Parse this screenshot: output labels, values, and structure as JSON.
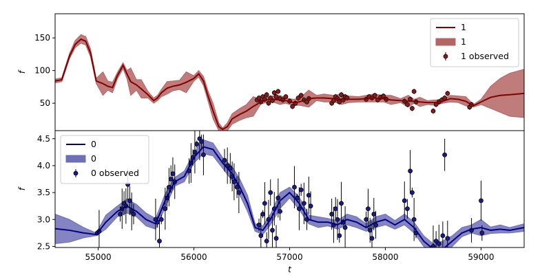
{
  "chart_data": [
    {
      "type": "line",
      "panel": "top",
      "ylabel": "f",
      "xlabel": "",
      "xlim": [
        54550,
        59450
      ],
      "ylim": [
        8,
        187
      ],
      "yticks": [
        50,
        100,
        150
      ],
      "xticks": [],
      "legend": {
        "placement": "top-right",
        "entries": [
          "1",
          "1",
          "1 observed"
        ]
      },
      "colors": {
        "line": "#7f0000",
        "band": "#b56464",
        "points": "#8b1a1a"
      },
      "series": [
        {
          "name": "1",
          "kind": "mean",
          "x": [
            54550,
            54620,
            54700,
            54760,
            54820,
            54870,
            54920,
            54980,
            55050,
            55100,
            55150,
            55200,
            55260,
            55300,
            55340,
            55400,
            55450,
            55520,
            55580,
            55620,
            55660,
            55720,
            55780,
            55850,
            55920,
            56000,
            56050,
            56100,
            56150,
            56200,
            56260,
            56300,
            56350,
            56400,
            56480,
            56550,
            56620,
            56700,
            56760,
            56820,
            56900,
            56960,
            57040,
            57100,
            57200,
            57280,
            57360,
            57460,
            57540,
            57620,
            57720,
            57800,
            57880,
            57980,
            58060,
            58160,
            58240,
            58300,
            58360,
            58440,
            58520,
            58600,
            58680,
            58760,
            58840,
            58920,
            59000,
            59100,
            59200,
            59300,
            59450
          ],
          "y": [
            84,
            86,
            122,
            140,
            148,
            145,
            127,
            84,
            80,
            76,
            74,
            92,
            108,
            95,
            83,
            78,
            72,
            63,
            54,
            58,
            66,
            73,
            76,
            78,
            82,
            88,
            95,
            84,
            60,
            38,
            14,
            10,
            14,
            26,
            33,
            38,
            45,
            52,
            55,
            56,
            55,
            54,
            51,
            52,
            57,
            58,
            58,
            57,
            56,
            56,
            56,
            57,
            58,
            57,
            55,
            54,
            53,
            53,
            52,
            51,
            51,
            53,
            57,
            56,
            53,
            46,
            52,
            59,
            62,
            63,
            65
          ]
        },
        {
          "name": "1",
          "kind": "band",
          "x": [
            54550,
            54620,
            54700,
            54760,
            54820,
            54870,
            54920,
            54980,
            55050,
            55100,
            55150,
            55200,
            55260,
            55300,
            55340,
            55400,
            55450,
            55520,
            55580,
            55620,
            55660,
            55720,
            55780,
            55850,
            55920,
            56000,
            56050,
            56100,
            56150,
            56200,
            56260,
            56300,
            56350,
            56400,
            56480,
            56550,
            56620,
            56700,
            56760,
            56820,
            56900,
            56960,
            57040,
            57100,
            57200,
            57280,
            57360,
            57460,
            57540,
            57620,
            57720,
            57800,
            57880,
            57980,
            58060,
            58160,
            58240,
            58300,
            58360,
            58440,
            58520,
            58600,
            58680,
            58760,
            58840,
            58920,
            59000,
            59100,
            59200,
            59300,
            59450
          ],
          "lower": [
            81,
            83,
            118,
            135,
            142,
            139,
            121,
            80,
            62,
            70,
            66,
            87,
            103,
            88,
            62,
            70,
            58,
            58,
            50,
            54,
            60,
            64,
            69,
            71,
            66,
            84,
            90,
            77,
            52,
            26,
            8,
            8,
            8,
            18,
            24,
            28,
            30,
            49,
            51,
            52,
            48,
            50,
            46,
            47,
            44,
            54,
            52,
            52,
            48,
            51,
            52,
            52,
            52,
            52,
            48,
            51,
            44,
            50,
            45,
            48,
            47,
            50,
            52,
            51,
            46,
            44,
            48,
            42,
            36,
            30,
            28
          ],
          "upper": [
            87,
            89,
            126,
            146,
            155,
            152,
            133,
            88,
            98,
            84,
            82,
            97,
            112,
            100,
            104,
            86,
            86,
            68,
            58,
            62,
            71,
            83,
            84,
            85,
            98,
            92,
            100,
            91,
            68,
            50,
            20,
            12,
            20,
            34,
            42,
            48,
            60,
            56,
            59,
            61,
            62,
            58,
            56,
            57,
            70,
            62,
            64,
            62,
            64,
            61,
            60,
            62,
            64,
            62,
            62,
            57,
            62,
            56,
            59,
            54,
            55,
            56,
            62,
            61,
            60,
            48,
            56,
            76,
            88,
            96,
            102
          ]
        },
        {
          "name": "1 observed",
          "kind": "points",
          "x": [
            56660,
            56680,
            56700,
            56720,
            56740,
            56760,
            56780,
            56800,
            56820,
            56840,
            56860,
            56880,
            56900,
            56930,
            56960,
            57000,
            57030,
            57060,
            57090,
            57120,
            57150,
            57180,
            57200,
            57440,
            57460,
            57480,
            57500,
            57520,
            57540,
            57560,
            57580,
            57600,
            57800,
            57830,
            57860,
            57890,
            57920,
            57950,
            57980,
            58010,
            58200,
            58230,
            58260,
            58280,
            58300,
            58320,
            58500,
            58530,
            58560,
            58590,
            58620,
            58650,
            58880,
            58900
          ],
          "y": [
            55,
            58,
            52,
            60,
            56,
            63,
            50,
            58,
            54,
            66,
            60,
            68,
            57,
            55,
            60,
            53,
            45,
            50,
            58,
            62,
            55,
            52,
            57,
            50,
            54,
            60,
            57,
            52,
            63,
            55,
            60,
            58,
            56,
            60,
            58,
            62,
            55,
            59,
            61,
            56,
            53,
            48,
            56,
            42,
            68,
            52,
            38,
            48,
            52,
            55,
            58,
            65,
            44,
            48
          ]
        }
      ]
    },
    {
      "type": "line",
      "panel": "bottom",
      "ylabel": "f",
      "xlabel": "t",
      "xlim": [
        54550,
        59450
      ],
      "ylim": [
        2.48,
        4.65
      ],
      "yticks": [
        2.5,
        3.0,
        3.5,
        4.0,
        4.5
      ],
      "xticks": [
        55000,
        56000,
        57000,
        58000,
        59000
      ],
      "legend": {
        "placement": "top-left",
        "entries": [
          "0",
          "0",
          "0 observed"
        ]
      },
      "colors": {
        "line": "#00007f",
        "band": "#6f6fb7",
        "points": "#1a1a8b"
      },
      "series": [
        {
          "name": "0",
          "kind": "mean",
          "x": [
            54550,
            54700,
            54850,
            54980,
            55080,
            55200,
            55300,
            55400,
            55500,
            55600,
            55700,
            55800,
            55900,
            56000,
            56100,
            56200,
            56300,
            56400,
            56480,
            56560,
            56640,
            56720,
            56800,
            56900,
            57000,
            57100,
            57200,
            57300,
            57400,
            57500,
            57600,
            57700,
            57800,
            57900,
            58000,
            58100,
            58200,
            58300,
            58400,
            58500,
            58600,
            58700,
            58800,
            58900,
            59000,
            59100,
            59200,
            59300,
            59450
          ],
          "y": [
            2.83,
            2.8,
            2.75,
            2.72,
            2.95,
            3.15,
            3.25,
            3.15,
            3.0,
            2.92,
            3.35,
            3.7,
            3.8,
            4.15,
            4.35,
            4.3,
            4.05,
            3.85,
            3.6,
            3.3,
            2.85,
            2.8,
            3.0,
            3.35,
            3.5,
            3.3,
            3.0,
            2.95,
            2.95,
            2.9,
            3.0,
            2.95,
            2.85,
            2.95,
            3.0,
            2.9,
            3.0,
            2.85,
            2.6,
            2.45,
            2.45,
            2.6,
            2.75,
            2.82,
            2.85,
            2.8,
            2.82,
            2.8,
            2.85
          ]
        },
        {
          "name": "0",
          "kind": "band",
          "x": [
            54550,
            54700,
            54850,
            54980,
            55080,
            55200,
            55300,
            55400,
            55500,
            55600,
            55700,
            55800,
            55900,
            56000,
            56100,
            56200,
            56300,
            56400,
            56480,
            56560,
            56640,
            56720,
            56800,
            56900,
            57000,
            57100,
            57200,
            57300,
            57400,
            57500,
            57600,
            57700,
            57800,
            57900,
            58000,
            58100,
            58200,
            58300,
            58400,
            58500,
            58600,
            58700,
            58800,
            58900,
            59000,
            59100,
            59200,
            59300,
            59450
          ],
          "lower": [
            2.55,
            2.58,
            2.66,
            2.7,
            2.82,
            3.05,
            3.12,
            3.05,
            2.88,
            2.82,
            3.22,
            3.62,
            3.7,
            4.05,
            4.22,
            4.18,
            3.95,
            3.72,
            3.45,
            3.15,
            2.78,
            2.72,
            2.9,
            3.2,
            3.4,
            3.18,
            2.92,
            2.85,
            2.88,
            2.82,
            2.9,
            2.85,
            2.78,
            2.85,
            2.9,
            2.82,
            2.9,
            2.75,
            2.5,
            2.4,
            2.38,
            2.5,
            2.68,
            2.75,
            2.7,
            2.74,
            2.75,
            2.75,
            2.78
          ],
          "upper": [
            3.1,
            3.0,
            2.85,
            2.75,
            3.08,
            3.25,
            3.38,
            3.28,
            3.12,
            3.02,
            3.48,
            3.78,
            3.9,
            4.25,
            4.48,
            4.42,
            4.15,
            3.98,
            3.75,
            3.45,
            2.92,
            2.88,
            3.1,
            3.5,
            3.6,
            3.42,
            3.08,
            3.05,
            3.02,
            2.98,
            3.1,
            3.05,
            2.92,
            3.05,
            3.1,
            2.98,
            3.1,
            2.95,
            2.7,
            2.55,
            2.6,
            2.7,
            2.85,
            2.9,
            3.0,
            2.86,
            2.9,
            2.85,
            2.92
          ]
        },
        {
          "name": "0 observed",
          "kind": "points",
          "x": [
            54990,
            55010,
            55230,
            55250,
            55270,
            55290,
            55310,
            55330,
            55350,
            55370,
            55600,
            55620,
            55640,
            55660,
            55700,
            55720,
            55740,
            55760,
            55780,
            55800,
            55950,
            55970,
            55990,
            56010,
            56030,
            56060,
            56080,
            56100,
            56320,
            56350,
            56380,
            56400,
            56420,
            56450,
            56470,
            56680,
            56700,
            56720,
            56740,
            56760,
            56780,
            56800,
            56820,
            56840,
            56860,
            56880,
            56900,
            57050,
            57080,
            57100,
            57120,
            57150,
            57180,
            57200,
            57220,
            57440,
            57460,
            57480,
            57500,
            57520,
            57540,
            57560,
            57580,
            57800,
            57820,
            57840,
            57860,
            57880,
            57900,
            58200,
            58230,
            58260,
            58280,
            58300,
            58320,
            58500,
            58530,
            58560,
            58600,
            58620,
            58650,
            58900,
            59000,
            59010
          ],
          "y": [
            2.75,
            2.78,
            3.1,
            3.2,
            3.3,
            3.25,
            3.65,
            3.35,
            3.15,
            3.1,
            3.0,
            2.95,
            2.6,
            3.0,
            3.2,
            3.4,
            3.6,
            3.75,
            3.85,
            3.7,
            3.9,
            4.05,
            4.15,
            4.25,
            4.4,
            4.5,
            4.45,
            4.2,
            4.1,
            4.0,
            3.95,
            3.8,
            3.7,
            3.6,
            3.5,
            2.9,
            2.7,
            3.1,
            3.3,
            2.6,
            3.0,
            3.5,
            2.8,
            3.2,
            2.65,
            3.4,
            3.15,
            3.6,
            3.4,
            3.2,
            3.55,
            3.3,
            3.0,
            3.45,
            3.25,
            3.1,
            2.9,
            3.2,
            3.0,
            2.7,
            3.3,
            2.95,
            2.85,
            3.0,
            3.2,
            2.8,
            2.65,
            3.1,
            2.9,
            3.35,
            3.2,
            3.9,
            3.5,
            3.0,
            2.75,
            2.5,
            2.6,
            2.55,
            2.7,
            4.2,
            2.65,
            2.8,
            3.35,
            2.75
          ]
        }
      ]
    }
  ]
}
